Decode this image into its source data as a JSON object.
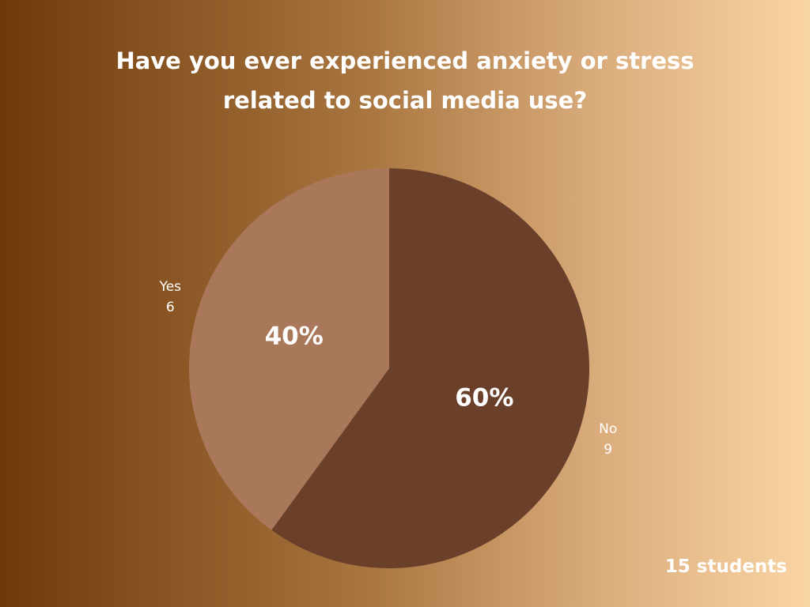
{
  "chart_data": {
    "type": "pie",
    "title": "Have you ever experienced anxiety or stress related to social media use?",
    "categories": [
      "No",
      "Yes"
    ],
    "values": [
      60,
      40
    ],
    "value_labels": [
      "60%",
      "40%"
    ],
    "counts": [
      9,
      6
    ],
    "colors": [
      "#6b402b",
      "#a9785a"
    ],
    "note": "15 students"
  }
}
